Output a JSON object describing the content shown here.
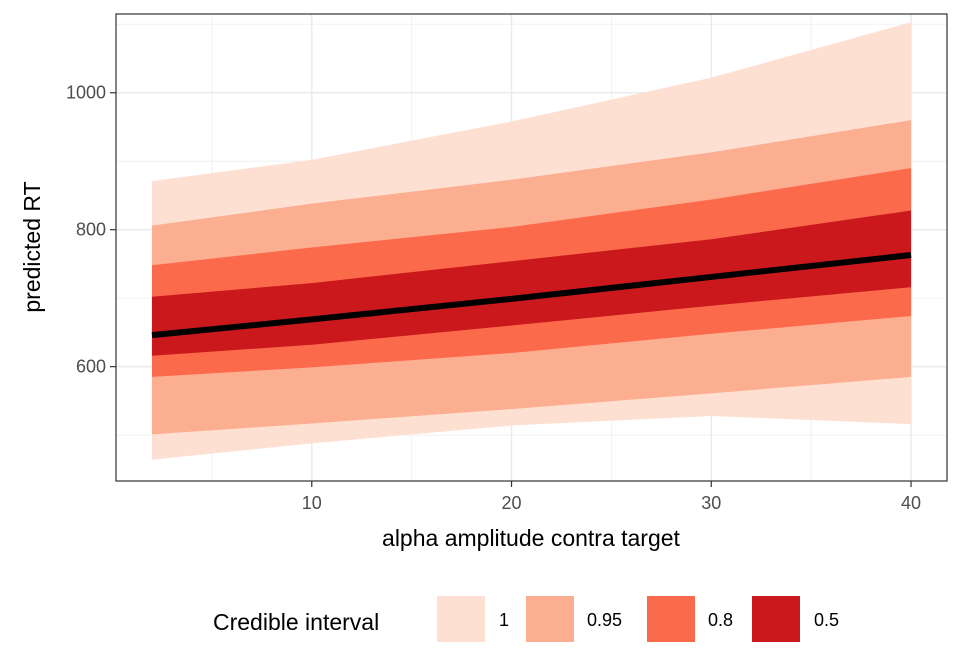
{
  "chart_data": {
    "type": "area",
    "xlabel": "alpha amplitude contra target",
    "ylabel": "predicted RT",
    "xlim": [
      0.2,
      41.8
    ],
    "ylim": [
      433,
      1115
    ],
    "x_ticks": [
      10,
      20,
      30,
      40
    ],
    "y_ticks": [
      600,
      800,
      1000
    ],
    "grid": true,
    "legend": {
      "title": "Credible interval",
      "position": "bottom",
      "entries": [
        "1",
        "0.95",
        "0.8",
        "0.5"
      ]
    },
    "x": [
      2,
      10,
      20,
      30,
      40
    ],
    "median": [
      646,
      669,
      699,
      731,
      763
    ],
    "bands": [
      {
        "name": "1",
        "color": "#fee0d2",
        "lower": [
          464,
          488,
          514,
          528,
          516
        ],
        "upper": [
          871,
          902,
          958,
          1022,
          1103
        ]
      },
      {
        "name": "0.95",
        "color": "#fcae91",
        "lower": [
          501,
          517,
          538,
          561,
          585
        ],
        "upper": [
          806,
          838,
          873,
          913,
          960
        ]
      },
      {
        "name": "0.8",
        "color": "#fb6a4a",
        "lower": [
          585,
          599,
          620,
          648,
          674
        ],
        "upper": [
          748,
          774,
          804,
          844,
          890
        ]
      },
      {
        "name": "0.5",
        "color": "#cb181d",
        "lower": [
          616,
          632,
          660,
          689,
          716
        ],
        "upper": [
          702,
          722,
          754,
          786,
          828
        ]
      }
    ],
    "median_color": "#000000"
  }
}
